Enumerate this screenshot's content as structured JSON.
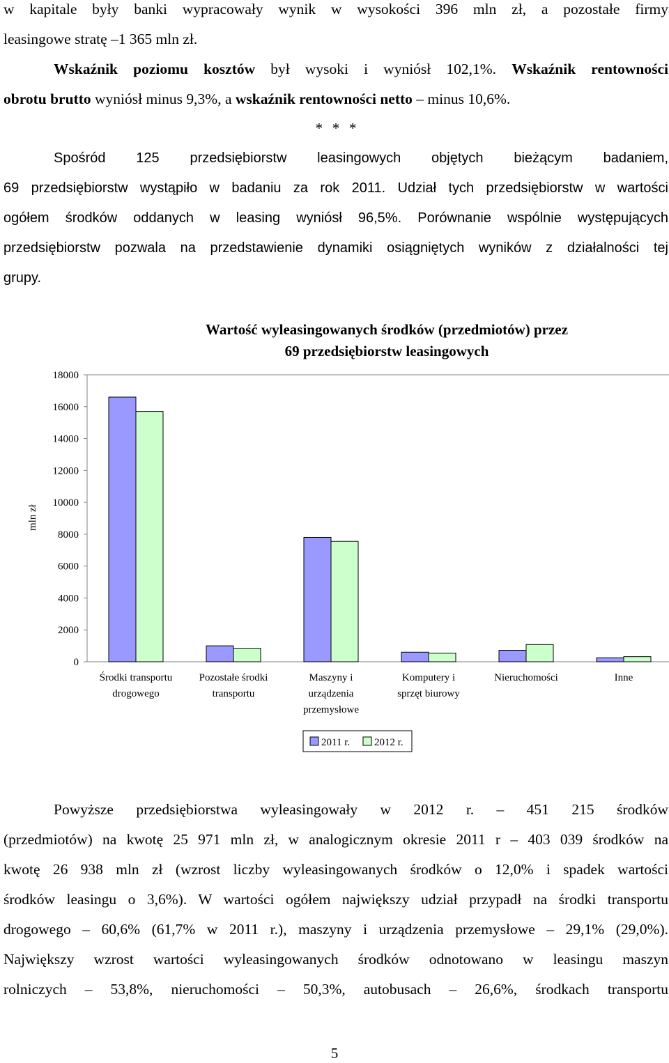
{
  "paragraph1": {
    "line1": "w kapitale były banki wypracowały wynik w wysokości 396 mln zł, a pozostałe firmy",
    "line2": "leasingowe stratę –1 365 mln zł."
  },
  "paragraph2": {
    "l1_b1": "Wskaźnik poziomu kosztów",
    "l1_t1": " był wysoki i wyniósł 102,1%. ",
    "l1_b2": "Wskaźnik rentowności",
    "l2_b1": "obrotu brutto",
    "l2_t1": " wyniósł minus 9,3%, a ",
    "l2_b2": "wskaźnik rentowności netto",
    "l2_t2": " – minus 10,6%."
  },
  "separator": "* * *",
  "paragraph3": {
    "line1": "Spośród 125 przedsiębiorstw leasingowych objętych bieżącym badaniem,",
    "line2": "69 przedsiębiorstw wystąpiło w badaniu za rok 2011. Udział tych przedsiębiorstw w wartości",
    "line3": "ogółem środków oddanych w leasing wyniósł 96,5%. Porównanie wspólnie występujących",
    "line4": "przedsiębiorstw pozwala na przedstawienie dynamiki osiągniętych wyników z działalności tej",
    "line5": "grupy."
  },
  "chart_data": {
    "type": "bar",
    "title": [
      "Wartość wyleasingowanych środków (przedmiotów) przez",
      "69 przedsiębiorstw leasingowych"
    ],
    "ylabel": "mln zł",
    "ylim": [
      0,
      18000
    ],
    "yticks": [
      "18000",
      "16000",
      "14000",
      "12000",
      "10000",
      "8000",
      "6000",
      "4000",
      "2000",
      "0"
    ],
    "categories": [
      [
        "Środki transportu",
        "drogowego"
      ],
      [
        "Pozostałe środki",
        "transportu"
      ],
      [
        "Maszyny i",
        "urządzenia",
        "przemysłowe"
      ],
      [
        "Komputery i",
        "sprzęt biurowy"
      ],
      [
        "Nieruchomości"
      ],
      [
        "Inne"
      ]
    ],
    "series": [
      {
        "name": "2011 r.",
        "color": "#9999ff",
        "values": [
          16600,
          1000,
          7800,
          600,
          720,
          250
        ]
      },
      {
        "name": "2012 r.",
        "color": "#ccffcc",
        "values": [
          15700,
          850,
          7550,
          540,
          1080,
          320
        ]
      }
    ],
    "legend_position": "bottom"
  },
  "paragraph4": {
    "line1": "Powyższe przedsiębiorstwa wyleasingowały w 2012 r. – 451 215 środków",
    "line2": "(przedmiotów) na kwotę 25 971 mln zł, w analogicznym okresie 2011 r – 403 039 środków na",
    "line3": "kwotę 26 938 mln zł (wzrost liczby wyleasingowanych środków o 12,0% i spadek wartości",
    "line4": "środków leasingu o 3,6%). W wartości ogółem największy udział przypadł na środki transportu",
    "line5": "drogowego – 60,6% (61,7% w 2011 r.), maszyny i urządzenia przemysłowe – 29,1% (29,0%).",
    "line6": "Największy wzrost wartości wyleasingowanych środków odnotowano w leasingu maszyn",
    "line7": "rolniczych – 53,8%, nieruchomości – 50,3%, autobusach – 26,6%, środkach transportu"
  },
  "page_number": "5"
}
